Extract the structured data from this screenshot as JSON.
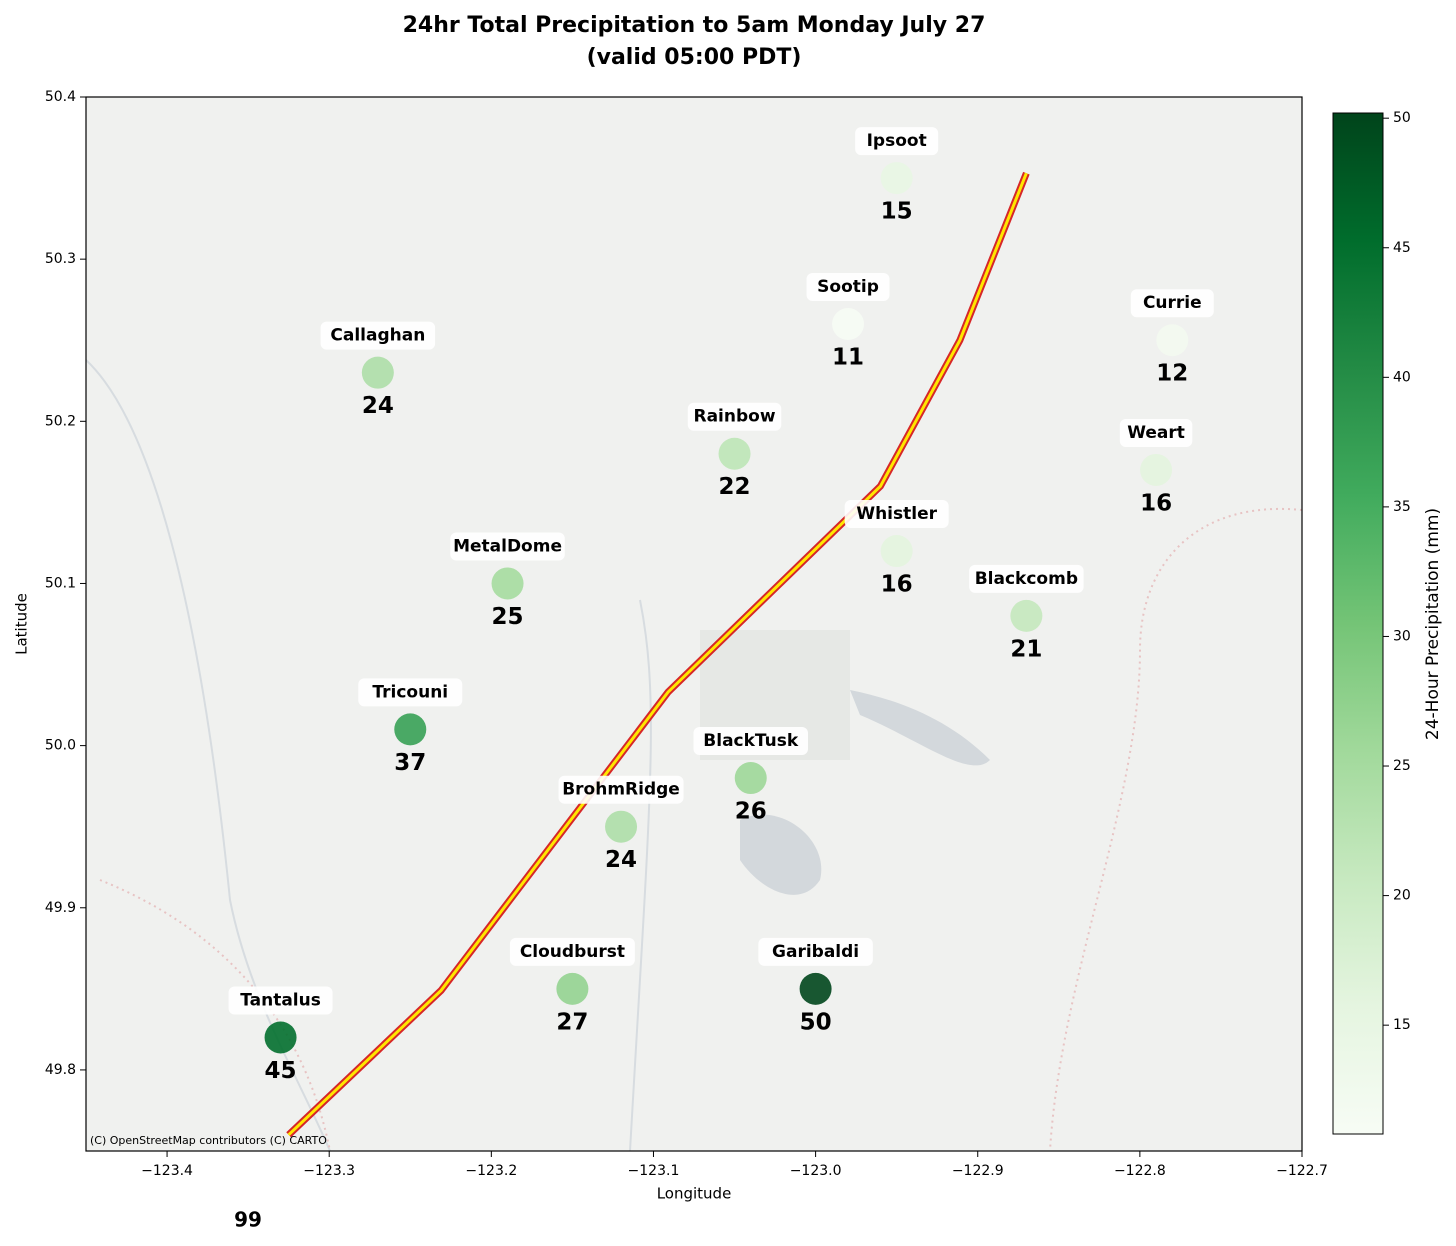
{
  "chart_data": {
    "type": "scatter",
    "title": "24hr Total Precipitation to 5am Monday July 27",
    "subtitle": "(valid 05:00 PDT)",
    "x_label": "Longitude",
    "y_label": "Latitude",
    "xlim": [
      -123.45,
      -122.7
    ],
    "ylim": [
      49.75,
      50.4
    ],
    "xticks": [
      {
        "value": -123.4,
        "label": "−123.4"
      },
      {
        "value": -123.3,
        "label": "−123.3"
      },
      {
        "value": -123.2,
        "label": "−123.2"
      },
      {
        "value": -123.1,
        "label": "−123.1"
      },
      {
        "value": -123.0,
        "label": "−123.0"
      },
      {
        "value": -122.9,
        "label": "−122.9"
      },
      {
        "value": -122.8,
        "label": "−122.8"
      },
      {
        "value": -122.7,
        "label": "−122.7"
      }
    ],
    "yticks": [
      49.8,
      49.9,
      {
        "value": 50.0,
        "label": "50.0"
      },
      50.1,
      50.2,
      50.3,
      50.4
    ],
    "names": [
      "Ipsoot",
      "Sootip",
      "Currie",
      "Callaghan",
      "Rainbow",
      "Weart",
      "Whistler",
      "Blackcomb",
      "MetalDome",
      "Tricouni",
      "BlackTusk",
      "BrohmRidge",
      "Cloudburst",
      "Garibaldi",
      "Tantalus"
    ],
    "x": [
      -122.95,
      -122.98,
      -122.78,
      -123.27,
      -123.05,
      -122.79,
      -122.95,
      -122.87,
      -123.19,
      -123.25,
      -123.04,
      -123.12,
      -123.15,
      -123.0,
      -123.33
    ],
    "y": [
      50.35,
      50.26,
      50.25,
      50.23,
      50.18,
      50.17,
      50.12,
      50.08,
      50.1,
      50.01,
      49.98,
      49.95,
      49.85,
      49.85,
      49.82
    ],
    "values": [
      15,
      11,
      12,
      24,
      22,
      16,
      16,
      21,
      25,
      37,
      26,
      24,
      27,
      50,
      45
    ],
    "value_color": "#14532d",
    "colormap": [
      "#f7fcf5",
      "#e5f5e0",
      "#c7e9c0",
      "#a1d99b",
      "#74c476",
      "#41ab5d",
      "#238b45",
      "#006d2c",
      "#00441b"
    ],
    "clim": [
      10.8,
      50.2
    ],
    "cticks": [
      15,
      20,
      25,
      30,
      35,
      40,
      45,
      50
    ],
    "colorbar_label": "24-Hour Precipitation (mm)",
    "route": {
      "color": "#d62728",
      "inner_color": "#ffe600",
      "x": [
        -123.325,
        -123.231,
        -123.091,
        -122.96,
        -122.911,
        -122.87
      ],
      "y": [
        49.76,
        49.849,
        50.033,
        50.16,
        50.25,
        50.353
      ]
    },
    "attribution": "(C) OpenStreetMap contributors (C) CARTO",
    "footer": "99"
  }
}
